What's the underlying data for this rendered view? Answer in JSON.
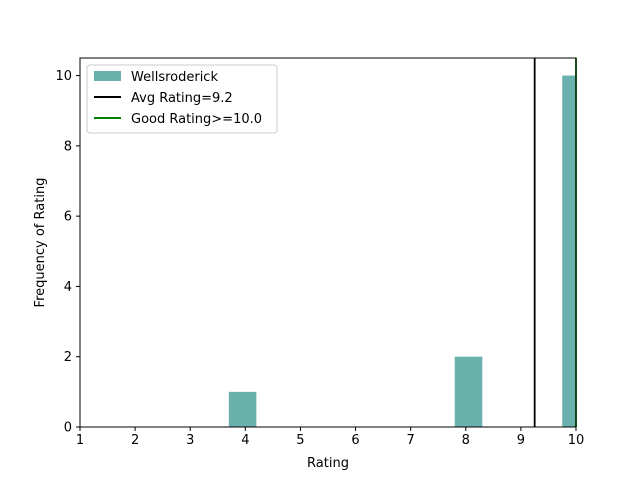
{
  "chart_data": {
    "type": "bar",
    "title": "",
    "xlabel": "Rating",
    "ylabel": "Frequency of Rating",
    "xlim": [
      1,
      10
    ],
    "ylim": [
      0,
      10.5
    ],
    "xticks": [
      1,
      2,
      3,
      4,
      5,
      6,
      7,
      8,
      9,
      10
    ],
    "yticks": [
      0,
      2,
      4,
      6,
      8,
      10
    ],
    "grid": false,
    "legend_position": "top-left",
    "series": [
      {
        "name": "Wellsroderick",
        "color": "#6ab1ae",
        "bins": [
          {
            "x0": 3.7,
            "x1": 4.2,
            "count": 1
          },
          {
            "x0": 7.8,
            "x1": 8.3,
            "count": 2
          },
          {
            "x0": 9.75,
            "x1": 10.0,
            "count": 10
          }
        ]
      }
    ],
    "reference_lines": [
      {
        "name": "Avg Rating=9.2",
        "x": 9.25,
        "color": "#000000"
      },
      {
        "name": "Good Rating>=10.0",
        "x": 10.0,
        "color": "#008000"
      }
    ]
  }
}
